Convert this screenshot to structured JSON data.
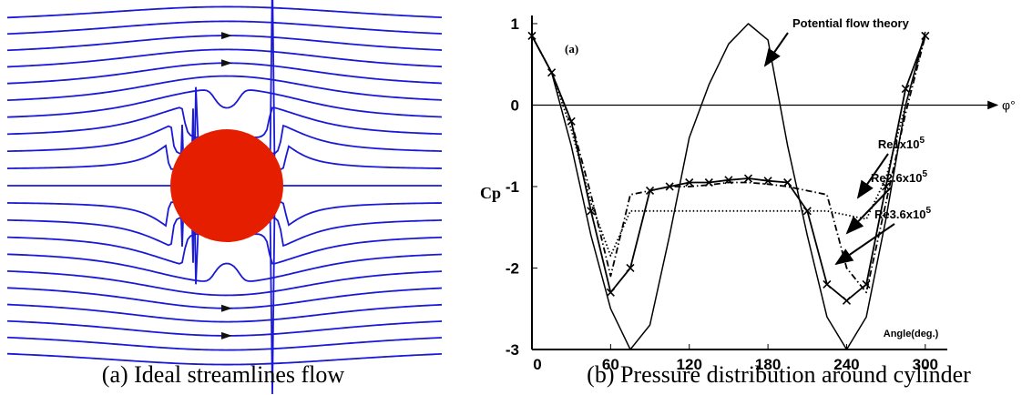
{
  "captions": [
    "(a) Ideal streamlines flow",
    "(b) Pressure distribution around cylinder"
  ],
  "chart_data": {
    "type": "line",
    "panel_label": "(a)",
    "ylabel": "Cp",
    "xlabel": "Angle(deg.)",
    "axis_symbol": "φ°",
    "x": [
      0,
      15,
      30,
      45,
      60,
      75,
      90,
      105,
      120,
      135,
      150,
      165,
      180,
      195,
      210,
      225,
      240,
      255,
      270,
      285,
      300
    ],
    "xlim": [
      0,
      355
    ],
    "ylim": [
      -3,
      1.1
    ],
    "xticks": [
      0,
      60,
      120,
      180,
      240,
      300
    ],
    "yticks": [
      1,
      0,
      -1,
      -2,
      -3
    ],
    "series": [
      {
        "color": "#000000",
        "style": "solid",
        "values": [
          0.85,
          0.4,
          -0.5,
          -1.6,
          -2.5,
          -3,
          -2.7,
          -1.6,
          -0.4,
          0.25,
          0.75,
          1.0,
          0.8,
          -0.5,
          -1.6,
          -2.6,
          -3,
          -2.6,
          -1.4,
          0.0,
          0.9
        ]
      },
      {
        "color": "#000000",
        "style": "dotted",
        "values": [
          0.85,
          0.4,
          -0.3,
          -1.2,
          -1.85,
          -1.3,
          -1.3,
          -1.3,
          -1.3,
          -1.3,
          -1.3,
          -1.3,
          -1.3,
          -1.3,
          -1.3,
          -1.3,
          -1.35,
          -1.4,
          -0.9,
          0.0,
          0.85
        ]
      },
      {
        "color": "#000000",
        "style": "dashdot",
        "values": [
          0.85,
          0.4,
          -0.2,
          -1.1,
          -2.1,
          -1.1,
          -1.05,
          -1.0,
          -1.0,
          -0.98,
          -0.95,
          -0.95,
          -0.97,
          -1.0,
          -1.05,
          -1.1,
          -2.0,
          -2.3,
          -1.2,
          -0.1,
          0.85
        ]
      },
      {
        "color": "#000000",
        "style": "marked",
        "values": [
          0.85,
          0.4,
          -0.2,
          -1.3,
          -2.3,
          -2.0,
          -1.05,
          -1.0,
          -0.95,
          -0.95,
          -0.92,
          -0.9,
          -0.93,
          -0.95,
          -1.3,
          -2.2,
          -2.4,
          -2.2,
          -1.0,
          0.2,
          0.85
        ]
      }
    ],
    "annotations": [
      {
        "text": "Potential flow theory",
        "series": 0
      },
      {
        "text": "Re1x10",
        "sup": "5",
        "series": 1
      },
      {
        "text": "Re2.6x10",
        "sup": "5",
        "series": 2
      },
      {
        "text": "Re3.6x10",
        "sup": "5",
        "series": 3
      }
    ]
  }
}
